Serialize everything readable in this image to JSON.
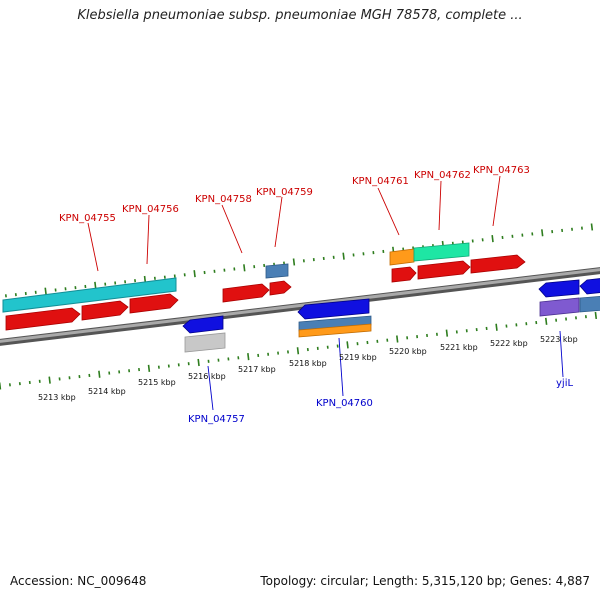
{
  "title": "Klebsiella pneumoniae subsp. pneumoniae MGH 78578, complete ...",
  "footer": {
    "accession": "Accession: NC_009648",
    "topology": "Topology: circular; Length: 5,315,120 bp; Genes: 4,887"
  },
  "colors": {
    "backbone": "#888888",
    "tick": "#2e7d1e",
    "forward_label": "#cc0000",
    "reverse_label": "#0000cc"
  },
  "axis_labels": {
    "outer": [
      "5213 kbp",
      "5214 kbp",
      "5215 kbp",
      "5216 kbp",
      "5217 kbp",
      "5218 kbp",
      "5219 kbp",
      "5220 kbp",
      "5221 kbp",
      "5222 kbp",
      "5223 kbp"
    ]
  },
  "gene_labels": [
    {
      "text": "KPN_04755",
      "strand": "forward"
    },
    {
      "text": "KPN_04756",
      "strand": "forward"
    },
    {
      "text": "KPN_04758",
      "strand": "forward"
    },
    {
      "text": "KPN_04759",
      "strand": "forward"
    },
    {
      "text": "KPN_04761",
      "strand": "forward"
    },
    {
      "text": "KPN_04762",
      "strand": "forward"
    },
    {
      "text": "KPN_04763",
      "strand": "forward"
    },
    {
      "text": "KPN_04757",
      "strand": "reverse"
    },
    {
      "text": "KPN_04760",
      "strand": "reverse"
    },
    {
      "text": "yjiL",
      "strand": "reverse"
    }
  ]
}
